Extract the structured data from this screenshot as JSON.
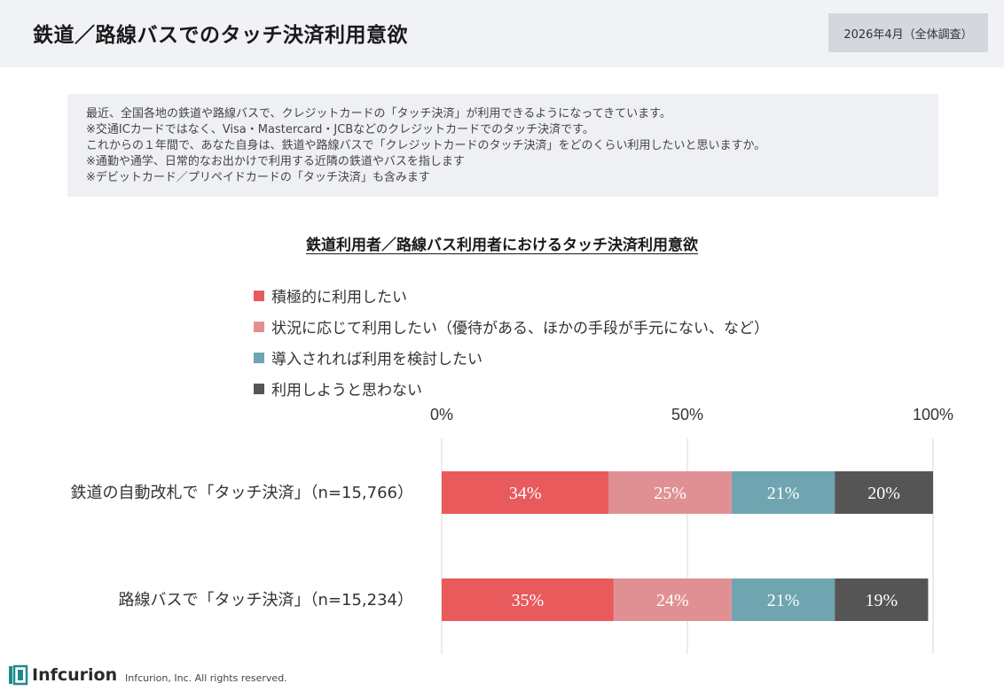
{
  "header": {
    "title": "鉄道／路線バスでのタッチ決済利用意欲",
    "survey_date": "2026年4月（全体調査）"
  },
  "question": {
    "lines": [
      "最近、全国各地の鉄道や路線バスで、クレジットカードの「タッチ決済」が利用できるようになってきています。",
      "※交通ICカードではなく、Visa・Mastercard・JCBなどのクレジットカードでのタッチ決済です。",
      "これからの１年間で、あなた自身は、鉄道や路線バスで「クレジットカードのタッチ決済」をどのくらい利用したいと思いますか。",
      "※通勤や通学、日常的なお出かけで利用する近隣の鉄道やバスを指します",
      "※デビットカード／プリペイドカードの「タッチ決済」も含みます"
    ]
  },
  "chart_data": {
    "type": "bar",
    "orientation": "horizontal",
    "stacked": true,
    "title": "鉄道利用者／路線バス利用者におけるタッチ決済利用意欲",
    "categories": [
      "鉄道の自動改札で「タッチ決済」（n=15,766）",
      "路線バスで「タッチ決済」（n=15,234）"
    ],
    "series": [
      {
        "name": "積極的に利用したい",
        "values": [
          34,
          35
        ],
        "color": "#e85a5c"
      },
      {
        "name": "状況に応じて利用したい（優待がある、ほかの手段が手元にない、など）",
        "values": [
          25,
          24
        ],
        "color": "#e09093"
      },
      {
        "name": "導入されれば利用を検討したい",
        "values": [
          21,
          21
        ],
        "color": "#6ea5b0"
      },
      {
        "name": "利用しようと思わない",
        "values": [
          20,
          19
        ],
        "color": "#555555"
      }
    ],
    "xlim": [
      0,
      100
    ],
    "x_ticks": [
      0,
      50,
      100
    ],
    "x_tick_labels": [
      "0%",
      "50%",
      "100%"
    ],
    "value_suffix": "%",
    "grid": true,
    "legend_position": "top-left"
  },
  "footer": {
    "logo_text": "Infcurion",
    "copyright": "Infcurion, Inc.  All rights reserved."
  },
  "colors": {
    "header_bg": "#f0f2f5",
    "badge_bg": "#d3d8df",
    "question_bg": "#eef0f3",
    "logo_accent": "#1f8a8c"
  },
  "icons": {
    "logo": "infcurion-logo-icon"
  }
}
